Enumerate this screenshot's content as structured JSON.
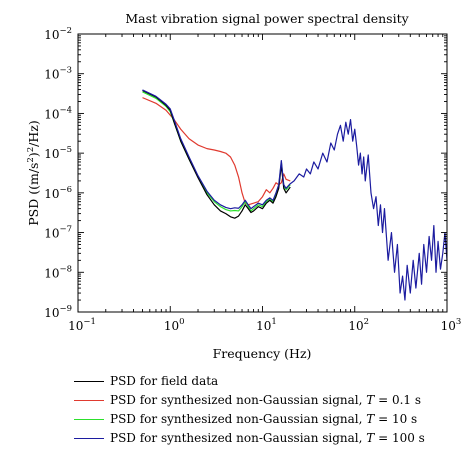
{
  "colors": {
    "field": "#000000",
    "t01": "#e03a2f",
    "t10": "#2ce02c",
    "t100": "#1c1ca0"
  },
  "chart_data": {
    "type": "line",
    "title": "Mast vibration signal power spectral density",
    "xlabel": "Frequency (Hz)",
    "ylabel": "PSD ((m/s²)²/Hz)",
    "xscale": "log",
    "yscale": "log",
    "xlim": [
      0.1,
      1000
    ],
    "ylim": [
      1e-09,
      0.01
    ],
    "grid": false,
    "legend_position": "below",
    "x_ticks": [
      {
        "value": 0.1,
        "base": "10",
        "exp": "−1"
      },
      {
        "value": 1,
        "base": "10",
        "exp": "0"
      },
      {
        "value": 10,
        "base": "10",
        "exp": "1"
      },
      {
        "value": 100,
        "base": "10",
        "exp": "2"
      },
      {
        "value": 1000,
        "base": "10",
        "exp": "3"
      }
    ],
    "y_ticks": [
      {
        "value": 1e-09,
        "base": "10",
        "exp": "−9"
      },
      {
        "value": 1e-08,
        "base": "10",
        "exp": "−8"
      },
      {
        "value": 1e-07,
        "base": "10",
        "exp": "−7"
      },
      {
        "value": 1e-06,
        "base": "10",
        "exp": "−6"
      },
      {
        "value": 1e-05,
        "base": "10",
        "exp": "−5"
      },
      {
        "value": 0.0001,
        "base": "10",
        "exp": "−4"
      },
      {
        "value": 0.001,
        "base": "10",
        "exp": "−3"
      },
      {
        "value": 0.01,
        "base": "10",
        "exp": "−2"
      }
    ],
    "series": [
      {
        "key": "t01",
        "name": "PSD for synthesized non-Gaussian signal, T = 0.1 s",
        "color": "#e03a2f",
        "points": [
          [
            0.5,
            0.00025
          ],
          [
            0.7,
            0.00018
          ],
          [
            0.9,
            0.00012
          ],
          [
            1.1,
            7e-05
          ],
          [
            1.3,
            4e-05
          ],
          [
            1.6,
            2.3e-05
          ],
          [
            2,
            1.6e-05
          ],
          [
            2.5,
            1.3e-05
          ],
          [
            3,
            1.2e-05
          ],
          [
            3.5,
            1.1e-05
          ],
          [
            4,
            1e-05
          ],
          [
            4.5,
            8e-06
          ],
          [
            5,
            5e-06
          ],
          [
            5.5,
            2.5e-06
          ],
          [
            6,
            1e-06
          ],
          [
            6.5,
            5.5e-07
          ],
          [
            7,
            5e-07
          ],
          [
            8,
            5.5e-07
          ],
          [
            9,
            6e-07
          ],
          [
            10,
            8e-07
          ],
          [
            11,
            1.2e-06
          ],
          [
            12,
            1e-06
          ],
          [
            13,
            1.3e-06
          ],
          [
            14,
            1.8e-06
          ],
          [
            15,
            1.6e-06
          ],
          [
            16,
            1.8e-06
          ],
          [
            17,
            3e-06
          ],
          [
            18,
            2.2e-06
          ],
          [
            20,
            2e-06
          ]
        ]
      },
      {
        "key": "t10",
        "name": "PSD for synthesized non-Gaussian signal, T = 10 s",
        "color": "#2ce02c",
        "points": [
          [
            0.5,
            0.00035
          ],
          [
            0.7,
            0.00024
          ],
          [
            0.9,
            0.00015
          ],
          [
            1,
            0.00011
          ],
          [
            1.1,
            6e-05
          ],
          [
            1.3,
            2e-05
          ],
          [
            1.6,
            7e-06
          ],
          [
            2,
            2.5e-06
          ],
          [
            2.5,
            1e-06
          ],
          [
            3,
            6e-07
          ],
          [
            3.5,
            4.5e-07
          ],
          [
            4,
            3.8e-07
          ],
          [
            4.5,
            3.5e-07
          ],
          [
            5,
            3.6e-07
          ],
          [
            5.5,
            3.5e-07
          ],
          [
            6,
            4.5e-07
          ],
          [
            6.5,
            6e-07
          ],
          [
            7,
            4.5e-07
          ],
          [
            7.5,
            3.5e-07
          ],
          [
            8,
            4e-07
          ],
          [
            9,
            5e-07
          ],
          [
            10,
            4.5e-07
          ],
          [
            11,
            6e-07
          ],
          [
            12,
            7e-07
          ],
          [
            13,
            6e-07
          ],
          [
            14,
            9e-07
          ],
          [
            15,
            1.5e-06
          ],
          [
            16,
            6e-06
          ],
          [
            17,
            1.5e-06
          ],
          [
            18,
            1.2e-06
          ],
          [
            20,
            1.6e-06
          ]
        ]
      },
      {
        "key": "field",
        "name": "PSD for field data",
        "color": "#000000",
        "points": [
          [
            0.5,
            0.00038
          ],
          [
            0.7,
            0.00026
          ],
          [
            0.9,
            0.00016
          ],
          [
            1,
            0.00012
          ],
          [
            1.1,
            6e-05
          ],
          [
            1.3,
            2e-05
          ],
          [
            1.6,
            7e-06
          ],
          [
            2,
            2.4e-06
          ],
          [
            2.5,
            9e-07
          ],
          [
            3,
            5e-07
          ],
          [
            3.5,
            3.5e-07
          ],
          [
            4,
            3e-07
          ],
          [
            4.5,
            2.5e-07
          ],
          [
            5,
            2.3e-07
          ],
          [
            5.5,
            2.6e-07
          ],
          [
            6,
            3.5e-07
          ],
          [
            6.5,
            5e-07
          ],
          [
            7,
            4e-07
          ],
          [
            7.5,
            3.2e-07
          ],
          [
            8,
            3.5e-07
          ],
          [
            9,
            4.5e-07
          ],
          [
            10,
            4e-07
          ],
          [
            11,
            5.5e-07
          ],
          [
            12,
            6.5e-07
          ],
          [
            13,
            5.5e-07
          ],
          [
            14,
            8e-07
          ],
          [
            15,
            1.3e-06
          ],
          [
            16,
            5e-06
          ],
          [
            17,
            1.3e-06
          ],
          [
            18,
            1e-06
          ],
          [
            20,
            1.4e-06
          ]
        ]
      },
      {
        "key": "t100",
        "name": "PSD for synthesized non-Gaussian signal, T = 100 s",
        "color": "#1c1ca0",
        "points": [
          [
            0.5,
            0.00039
          ],
          [
            0.7,
            0.00027
          ],
          [
            0.9,
            0.00017
          ],
          [
            1,
            0.00013
          ],
          [
            1.1,
            7e-05
          ],
          [
            1.3,
            2.3e-05
          ],
          [
            1.6,
            8e-06
          ],
          [
            2,
            2.7e-06
          ],
          [
            2.5,
            1.1e-06
          ],
          [
            3,
            6.5e-07
          ],
          [
            3.5,
            5e-07
          ],
          [
            4,
            4.3e-07
          ],
          [
            4.5,
            4e-07
          ],
          [
            5,
            4.2e-07
          ],
          [
            5.5,
            4.1e-07
          ],
          [
            6,
            5e-07
          ],
          [
            6.5,
            6.5e-07
          ],
          [
            7,
            5e-07
          ],
          [
            7.5,
            4e-07
          ],
          [
            8,
            4.5e-07
          ],
          [
            9,
            5.5e-07
          ],
          [
            10,
            5e-07
          ],
          [
            11,
            6.5e-07
          ],
          [
            12,
            7.5e-07
          ],
          [
            13,
            6.5e-07
          ],
          [
            14,
            1e-06
          ],
          [
            15,
            1.6e-06
          ],
          [
            16,
            6.5e-06
          ],
          [
            17,
            1.6e-06
          ],
          [
            18,
            1.3e-06
          ],
          [
            20,
            1.7e-06
          ],
          [
            22,
            2e-06
          ],
          [
            25,
            3e-06
          ],
          [
            28,
            2.5e-06
          ],
          [
            30,
            4e-06
          ],
          [
            33,
            3e-06
          ],
          [
            36,
            6e-06
          ],
          [
            40,
            4e-06
          ],
          [
            45,
            1e-05
          ],
          [
            50,
            6e-06
          ],
          [
            55,
            1.8e-05
          ],
          [
            60,
            1.2e-05
          ],
          [
            65,
            3e-05
          ],
          [
            70,
            5e-05
          ],
          [
            75,
            2e-05
          ],
          [
            80,
            6e-05
          ],
          [
            85,
            3e-05
          ],
          [
            90,
            7e-05
          ],
          [
            95,
            2e-05
          ],
          [
            100,
            4e-05
          ],
          [
            105,
            1.5e-05
          ],
          [
            110,
            5e-06
          ],
          [
            115,
            1e-05
          ],
          [
            120,
            3e-06
          ],
          [
            125,
            8e-06
          ],
          [
            130,
            2e-06
          ],
          [
            140,
            9e-06
          ],
          [
            150,
            1e-06
          ],
          [
            160,
            4e-07
          ],
          [
            170,
            8e-07
          ],
          [
            180,
            1.5e-07
          ],
          [
            190,
            5e-07
          ],
          [
            200,
            1e-07
          ],
          [
            210,
            4e-07
          ],
          [
            230,
            2e-08
          ],
          [
            250,
            1e-07
          ],
          [
            270,
            1e-08
          ],
          [
            290,
            5e-08
          ],
          [
            310,
            3e-09
          ],
          [
            330,
            8e-09
          ],
          [
            350,
            2e-09
          ],
          [
            370,
            1.5e-08
          ],
          [
            400,
            3e-09
          ],
          [
            430,
            2e-08
          ],
          [
            460,
            4e-09
          ],
          [
            500,
            3e-08
          ],
          [
            530,
            5e-09
          ],
          [
            560,
            5e-08
          ],
          [
            600,
            1e-08
          ],
          [
            640,
            8e-08
          ],
          [
            680,
            2e-08
          ],
          [
            720,
            1.5e-07
          ],
          [
            760,
            1e-08
          ],
          [
            800,
            6e-08
          ],
          [
            850,
            1.2e-08
          ],
          [
            900,
            3e-08
          ],
          [
            950,
            1e-07
          ],
          [
            1000,
            2e-08
          ]
        ]
      }
    ]
  },
  "legend": {
    "items": [
      {
        "key": "field",
        "text": "PSD for field data",
        "italic": "",
        "suffix": ""
      },
      {
        "key": "t01",
        "text": "PSD for synthesized non-Gaussian signal, ",
        "italic": "T",
        "suffix": " = 0.1 s"
      },
      {
        "key": "t10",
        "text": "PSD for synthesized non-Gaussian signal, ",
        "italic": "T",
        "suffix": " = 10 s"
      },
      {
        "key": "t100",
        "text": "PSD for synthesized non-Gaussian signal, ",
        "italic": "T",
        "suffix": " = 100 s"
      }
    ]
  }
}
